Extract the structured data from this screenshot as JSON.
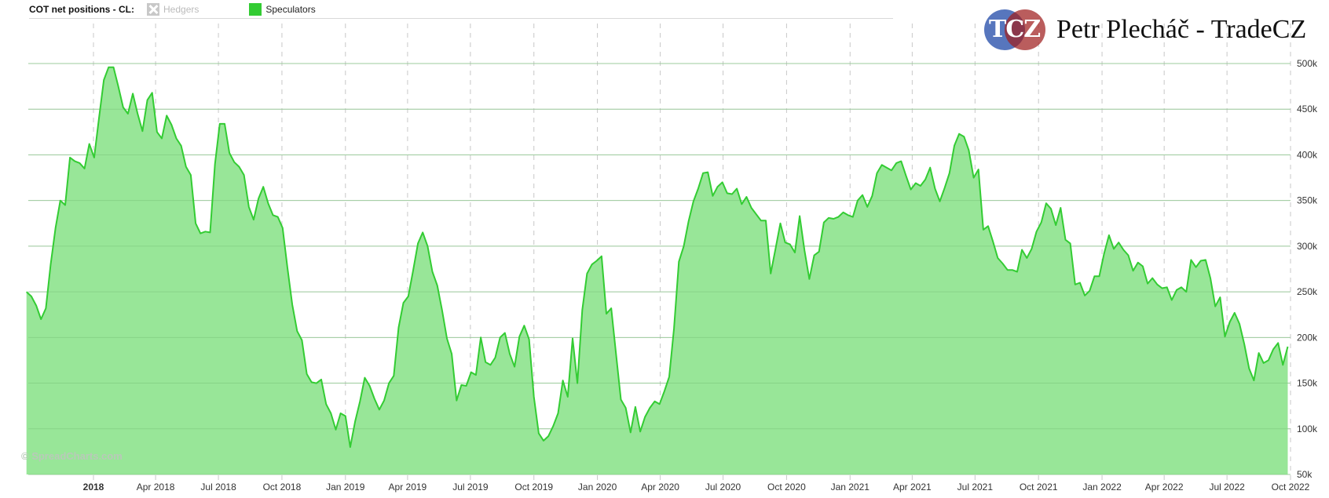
{
  "legend": {
    "title": "COT net positions - CL:",
    "items": [
      {
        "label": "Hedgers",
        "state": "hidden",
        "color": "#c8c8c8"
      },
      {
        "label": "Speculators",
        "state": "visible",
        "color": "#33cc33"
      }
    ]
  },
  "logo": {
    "letters": "TCZ",
    "text": "Petr Plecháč - TradeCZ"
  },
  "watermark": "© SpreadCharts.com",
  "colors": {
    "line": "#33cc33",
    "fill": "#98e698",
    "grid": "#d0d0d0"
  },
  "chart_data": {
    "type": "area",
    "series": [
      {
        "name": "Speculators"
      }
    ],
    "ylim": [
      50000,
      500000
    ],
    "y_ticks": [
      "50k",
      "100k",
      "150k",
      "200k",
      "250k",
      "300k",
      "350k",
      "400k",
      "450k",
      "500k"
    ],
    "y_tick_values": [
      50000,
      100000,
      150000,
      200000,
      250000,
      300000,
      350000,
      400000,
      450000,
      500000
    ],
    "x_ticks": [
      "2018",
      "Apr 2018",
      "Jul 2018",
      "Oct 2018",
      "Jan 2019",
      "Apr 2019",
      "Jul 2019",
      "Oct 2019",
      "Jan 2020",
      "Apr 2020",
      "Jul 2020",
      "Oct 2020",
      "Jan 2021",
      "Apr 2021",
      "Jul 2021",
      "Oct 2021",
      "Jan 2022",
      "Apr 2022",
      "Jul 2022",
      "Oct 2022"
    ],
    "x_tick_dates": [
      "2018-01-01",
      "2018-04-01",
      "2018-07-01",
      "2018-10-01",
      "2019-01-01",
      "2019-04-01",
      "2019-07-01",
      "2019-10-01",
      "2020-01-01",
      "2020-04-01",
      "2020-07-01",
      "2020-10-01",
      "2021-01-01",
      "2021-04-01",
      "2021-07-01",
      "2021-10-01",
      "2022-01-01",
      "2022-04-01",
      "2022-07-01",
      "2022-10-01"
    ],
    "grid": true,
    "legend": "top-left",
    "start_week": "2017-09-26",
    "values_k": [
      250,
      245,
      235,
      220,
      232,
      280,
      320,
      350,
      345,
      397,
      393,
      391,
      385,
      412,
      397,
      440,
      482,
      496,
      496,
      475,
      452,
      445,
      467,
      445,
      426,
      460,
      468,
      425,
      418,
      443,
      433,
      418,
      410,
      387,
      378,
      325,
      314,
      316,
      315,
      390,
      434,
      434,
      402,
      392,
      387,
      378,
      343,
      329,
      352,
      365,
      347,
      334,
      332,
      320,
      276,
      236,
      207,
      197,
      160,
      151,
      150,
      154,
      127,
      117,
      99,
      117,
      114,
      80,
      108,
      130,
      156,
      147,
      133,
      121,
      131,
      150,
      158,
      211,
      238,
      245,
      273,
      303,
      315,
      300,
      272,
      257,
      230,
      199,
      182,
      131,
      148,
      147,
      162,
      159,
      200,
      173,
      170,
      178,
      200,
      205,
      182,
      168,
      201,
      213,
      198,
      135,
      95,
      87,
      92,
      103,
      117,
      153,
      135,
      199,
      150,
      230,
      270,
      280,
      284,
      289,
      226,
      232,
      182,
      132,
      123,
      96,
      124,
      97,
      113,
      123,
      130,
      127,
      141,
      157,
      210,
      283,
      300,
      327,
      349,
      363,
      380,
      381,
      355,
      365,
      370,
      358,
      357,
      363,
      346,
      354,
      342,
      335,
      328,
      328,
      270,
      297,
      325,
      304,
      302,
      293,
      333,
      295,
      264,
      290,
      294,
      326,
      331,
      330,
      332,
      337,
      334,
      332,
      350,
      356,
      343,
      355,
      380,
      389,
      386,
      383,
      391,
      393,
      377,
      362,
      369,
      366,
      373,
      386,
      363,
      349,
      364,
      380,
      410,
      423,
      420,
      405,
      375,
      384,
      318,
      322,
      305,
      287,
      281,
      274,
      274,
      272,
      296,
      287,
      297,
      316,
      326,
      347,
      341,
      323,
      342,
      307,
      303,
      258,
      260,
      246,
      251,
      267,
      267,
      292,
      312,
      297,
      304,
      296,
      290,
      273,
      282,
      278,
      259,
      265,
      258,
      254,
      255,
      241,
      252,
      255,
      250,
      285,
      277,
      284,
      285,
      265,
      234,
      244,
      201,
      217,
      227,
      215,
      193,
      166,
      153,
      183,
      172,
      175,
      187,
      194,
      170,
      190
    ]
  }
}
